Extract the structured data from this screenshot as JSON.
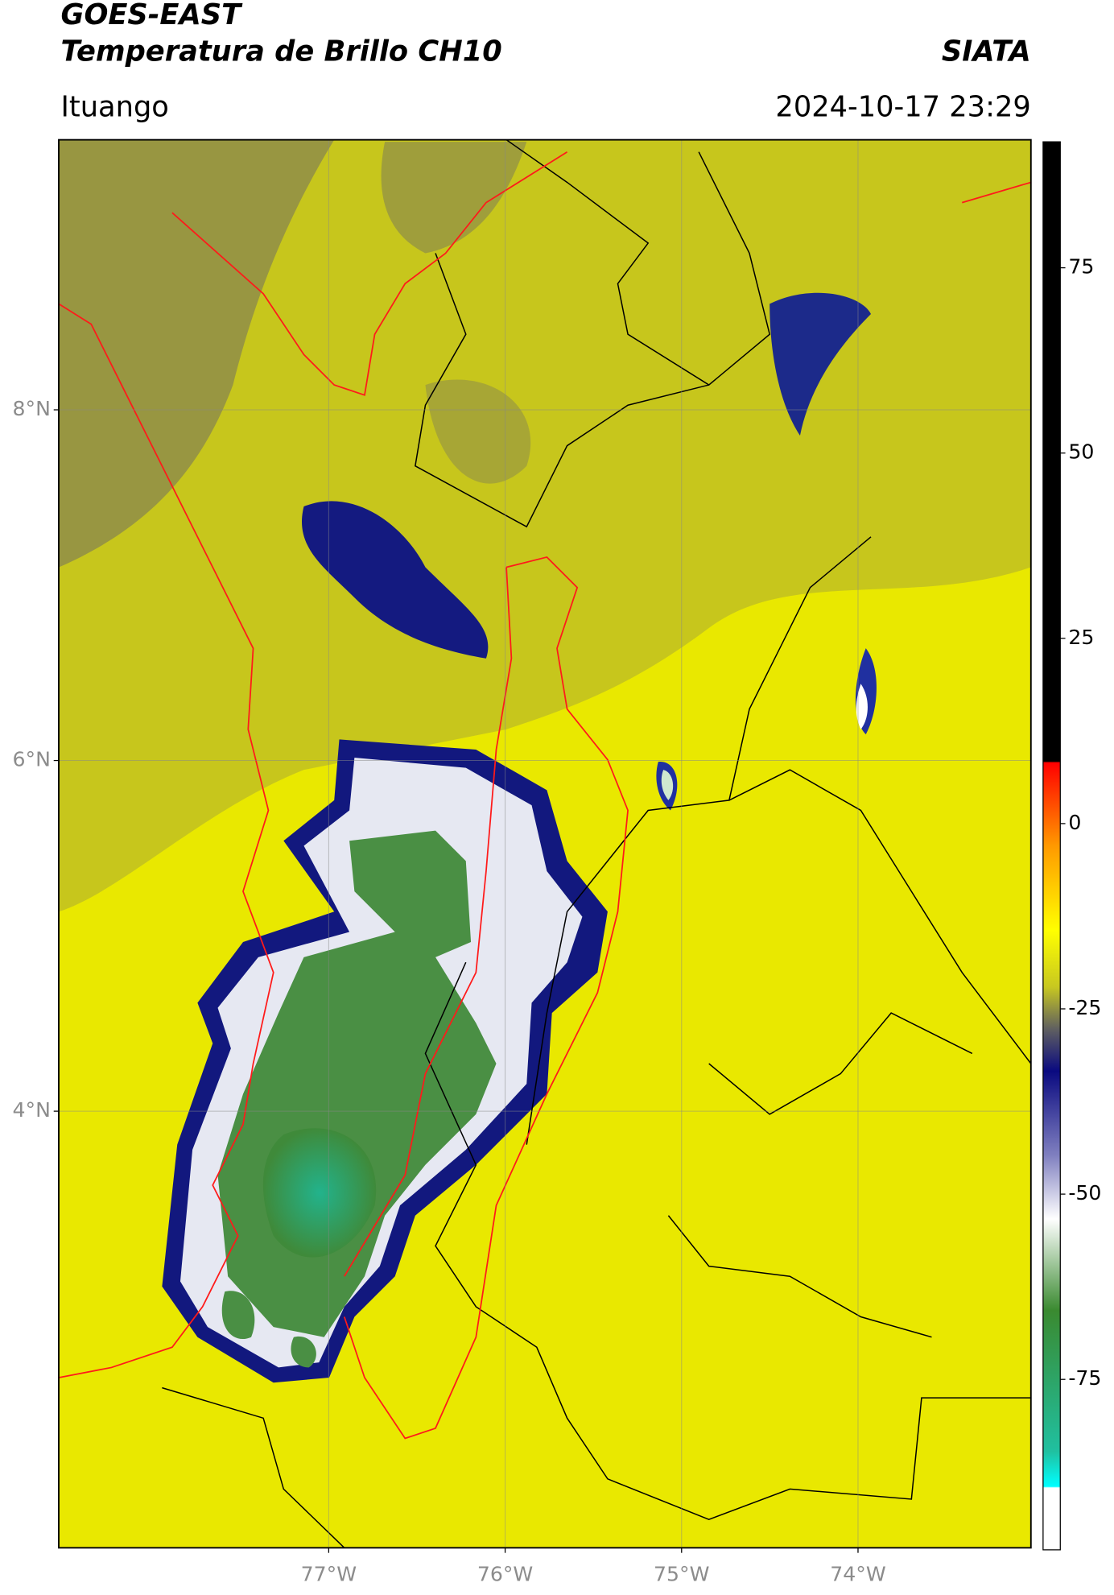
{
  "header": {
    "line1": "GOES-EAST",
    "line2": "Temperatura de Brillo CH10",
    "brand": "SIATA",
    "location": "Ituango",
    "datetime": "2024-10-17 23:29"
  },
  "map": {
    "xlim": [
      -78.53,
      -73.02
    ],
    "ylim": [
      1.51,
      9.54
    ],
    "lat_ticks": [
      {
        "value": 8,
        "label": "8°N"
      },
      {
        "value": 6,
        "label": "6°N"
      },
      {
        "value": 4,
        "label": "4°N"
      }
    ],
    "lon_ticks": [
      {
        "value": -77,
        "label": "77°W"
      },
      {
        "value": -76,
        "label": "76°W"
      },
      {
        "value": -75,
        "label": "75°W"
      },
      {
        "value": -74,
        "label": "74°W"
      }
    ]
  },
  "colorbar": {
    "clim": [
      -98,
      92
    ],
    "ticks": [
      75,
      50,
      25,
      0,
      -25,
      -50,
      -75
    ]
  }
}
